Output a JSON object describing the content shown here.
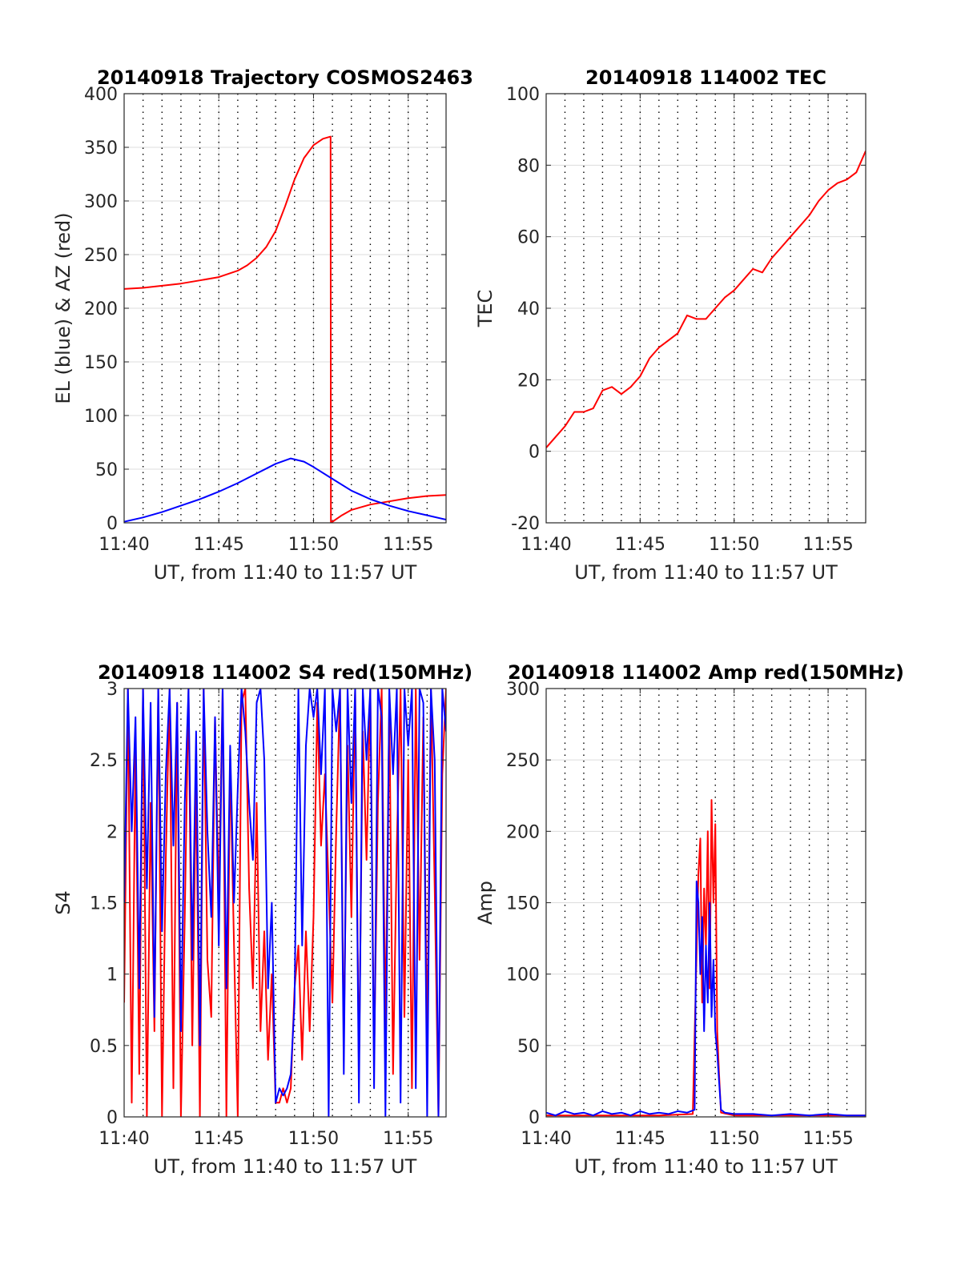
{
  "figure": {
    "colors": {
      "red": "#ff0000",
      "blue": "#0000ff",
      "grid": "#dcdcdc",
      "axis": "#262626"
    }
  },
  "chart_data": [
    {
      "type": "line",
      "title": "20140918 Trajectory COSMOS2463",
      "xlabel": "UT, from 11:40 to 11:57 UT",
      "ylabel": "EL (blue) & AZ (red)",
      "xlim": [
        0,
        17
      ],
      "ylim": [
        0,
        400
      ],
      "xticks": [
        0,
        5,
        10,
        15
      ],
      "xtick_labels": [
        "11:40",
        "11:45",
        "11:50",
        "11:55"
      ],
      "yticks": [
        0,
        50,
        100,
        150,
        200,
        250,
        300,
        350,
        400
      ],
      "ytick_labels": [
        "0",
        "50",
        "100",
        "150",
        "200",
        "250",
        "300",
        "350",
        "400"
      ],
      "grid": true,
      "series": [
        {
          "color": "#ff0000",
          "x": [
            0,
            1,
            2,
            3,
            4,
            5,
            6,
            6.5,
            7,
            7.5,
            8,
            8.5,
            9,
            9.5,
            10,
            10.5,
            10.9,
            10.92,
            11.5,
            12,
            13,
            14,
            15,
            16,
            17
          ],
          "y": [
            218,
            219,
            221,
            223,
            226,
            229,
            235,
            240,
            247,
            257,
            272,
            295,
            320,
            340,
            352,
            358,
            360,
            0,
            7,
            12,
            17,
            20,
            23,
            25,
            26
          ]
        },
        {
          "color": "#0000ff",
          "x": [
            0,
            1,
            2,
            3,
            4,
            5,
            6,
            7,
            8,
            8.8,
            9.5,
            10,
            11,
            12,
            13,
            14,
            15,
            16,
            17
          ],
          "y": [
            1,
            5,
            10,
            16,
            22,
            29,
            37,
            46,
            55,
            60,
            57,
            52,
            41,
            30,
            22,
            16,
            11,
            7,
            3
          ]
        }
      ]
    },
    {
      "type": "line",
      "title": "20140918 114002 TEC",
      "xlabel": "UT, from 11:40 to 11:57 UT",
      "ylabel": "TEC",
      "xlim": [
        0,
        17
      ],
      "ylim": [
        -20,
        100
      ],
      "xticks": [
        0,
        5,
        10,
        15
      ],
      "xtick_labels": [
        "11:40",
        "11:45",
        "11:50",
        "11:55"
      ],
      "yticks": [
        -20,
        0,
        20,
        40,
        60,
        80,
        100
      ],
      "ytick_labels": [
        "-20",
        "0",
        "20",
        "40",
        "60",
        "80",
        "100"
      ],
      "grid": true,
      "series": [
        {
          "color": "#ff0000",
          "x": [
            0,
            0.5,
            1,
            1.5,
            2,
            2.5,
            3,
            3.5,
            4,
            4.5,
            5,
            5.5,
            6,
            6.5,
            7,
            7.5,
            8,
            8.5,
            9,
            9.5,
            10,
            10.5,
            11,
            11.5,
            12,
            12.5,
            13,
            13.5,
            14,
            14.5,
            15,
            15.5,
            16,
            16.5,
            17
          ],
          "y": [
            1,
            4,
            7,
            11,
            11,
            12,
            17,
            18,
            16,
            18,
            21,
            26,
            29,
            31,
            33,
            38,
            37,
            37,
            40,
            43,
            45,
            48,
            51,
            50,
            54,
            57,
            60,
            63,
            66,
            70,
            73,
            75,
            76,
            78,
            84
          ]
        }
      ]
    },
    {
      "type": "line",
      "title": "20140918 114002 S4 red(150MHz)",
      "xlabel": "UT, from 11:40 to 11:57 UT",
      "ylabel": "S4",
      "xlim": [
        0,
        17
      ],
      "ylim": [
        0,
        3
      ],
      "xticks": [
        0,
        5,
        10,
        15
      ],
      "xtick_labels": [
        "11:40",
        "11:45",
        "11:50",
        "11:55"
      ],
      "yticks": [
        0,
        0.5,
        1,
        1.5,
        2,
        2.5,
        3
      ],
      "ytick_labels": [
        "0",
        "0.5",
        "1",
        "1.5",
        "2",
        "2.5",
        "3"
      ],
      "grid": true,
      "series": [
        {
          "color": "#ff0000",
          "x": [
            0,
            0.2,
            0.4,
            0.6,
            0.8,
            1,
            1.2,
            1.4,
            1.6,
            1.8,
            2,
            2.2,
            2.4,
            2.6,
            2.8,
            3,
            3.2,
            3.4,
            3.6,
            3.8,
            4,
            4.2,
            4.4,
            4.6,
            4.8,
            5,
            5.2,
            5.4,
            5.6,
            5.8,
            6,
            6.2,
            6.4,
            6.6,
            6.8,
            7,
            7.2,
            7.4,
            7.6,
            7.8,
            8,
            8.2,
            8.4,
            8.6,
            8.8,
            9,
            9.2,
            9.4,
            9.6,
            9.8,
            10,
            10.2,
            10.4,
            10.6,
            10.8,
            11,
            11.2,
            11.4,
            11.6,
            11.8,
            12,
            12.2,
            12.4,
            12.6,
            12.8,
            13,
            13.2,
            13.4,
            13.6,
            13.8,
            14,
            14.2,
            14.4,
            14.6,
            14.8,
            15,
            15.2,
            15.4,
            15.6,
            15.8,
            16,
            16.2,
            16.4,
            16.6,
            16.8,
            17
          ],
          "y": [
            0.8,
            3,
            0.1,
            2.6,
            0.3,
            3,
            0,
            2.2,
            0.6,
            3,
            0,
            1.8,
            3,
            0.2,
            2.9,
            0,
            1.4,
            3,
            0.5,
            2.4,
            0,
            3,
            1.1,
            0.7,
            2.8,
            1.5,
            3,
            0,
            2.5,
            1.2,
            0,
            2.9,
            3,
            1.6,
            0.9,
            2.2,
            0.6,
            1.3,
            0.4,
            1,
            0.1,
            0.1,
            0.2,
            0.1,
            0.2,
            0.9,
            1.2,
            0.4,
            1.3,
            0.6,
            1.4,
            2.9,
            1.9,
            2.4,
            1.6,
            0.8,
            2,
            3,
            0.5,
            2.6,
            1.4,
            3,
            0.3,
            2.7,
            1.8,
            3,
            0.4,
            2.2,
            3,
            0.6,
            2.9,
            0.3,
            1.9,
            3,
            0.7,
            2.5,
            0.2,
            3,
            1.1,
            2.8,
            0.5,
            3,
            1.6,
            0,
            2.4,
            3
          ]
        },
        {
          "color": "#0000ff",
          "x": [
            0,
            0.2,
            0.4,
            0.6,
            0.8,
            1,
            1.2,
            1.4,
            1.6,
            1.8,
            2,
            2.2,
            2.4,
            2.6,
            2.8,
            3,
            3.2,
            3.4,
            3.6,
            3.8,
            4,
            4.2,
            4.4,
            4.6,
            4.8,
            5,
            5.2,
            5.4,
            5.6,
            5.8,
            6,
            6.2,
            6.4,
            6.6,
            6.8,
            7,
            7.2,
            7.4,
            7.6,
            7.8,
            8,
            8.2,
            8.4,
            8.6,
            8.8,
            9,
            9.2,
            9.4,
            9.6,
            9.8,
            10,
            10.2,
            10.4,
            10.6,
            10.8,
            11,
            11.2,
            11.4,
            11.6,
            11.8,
            12,
            12.2,
            12.4,
            12.6,
            12.8,
            13,
            13.2,
            13.4,
            13.6,
            13.8,
            14,
            14.2,
            14.4,
            14.6,
            14.8,
            15,
            15.2,
            15.4,
            15.6,
            15.8,
            16,
            16.2,
            16.4,
            16.6,
            16.8,
            17
          ],
          "y": [
            1.5,
            3,
            2,
            2.8,
            0.9,
            3,
            1.6,
            2.9,
            0.7,
            3,
            1.3,
            2.4,
            3,
            1.9,
            2.9,
            0.6,
            2.2,
            3,
            1.1,
            2.7,
            0.5,
            3,
            2,
            1.4,
            2.8,
            1.2,
            3,
            0.9,
            2.6,
            1.5,
            2.3,
            3,
            2.7,
            2.2,
            1.8,
            2.9,
            3,
            2.5,
            0.9,
            1.5,
            0.1,
            0.2,
            0.15,
            0.2,
            0.3,
            0.8,
            3,
            1.2,
            2.6,
            3,
            2.8,
            3,
            2.4,
            3,
            0,
            3,
            2.7,
            3,
            0.3,
            3,
            2.2,
            3,
            0.1,
            3,
            2.5,
            3,
            0.2,
            3,
            2.8,
            0,
            3,
            2.4,
            3,
            0.1,
            3,
            2.6,
            3,
            0.2,
            3,
            2.9,
            0,
            3,
            2.5,
            0,
            3,
            2.7
          ]
        }
      ]
    },
    {
      "type": "line",
      "title": "20140918 114002 Amp red(150MHz)",
      "xlabel": "UT, from 11:40 to 11:57 UT",
      "ylabel": "Amp",
      "xlim": [
        0,
        17
      ],
      "ylim": [
        0,
        300
      ],
      "xticks": [
        0,
        5,
        10,
        15
      ],
      "xtick_labels": [
        "11:40",
        "11:45",
        "11:50",
        "11:55"
      ],
      "yticks": [
        0,
        50,
        100,
        150,
        200,
        250,
        300
      ],
      "ytick_labels": [
        "0",
        "50",
        "100",
        "150",
        "200",
        "250",
        "300"
      ],
      "grid": true,
      "series": [
        {
          "color": "#ff0000",
          "x": [
            0,
            2,
            4,
            6,
            7.8,
            8.1,
            8.2,
            8.3,
            8.4,
            8.5,
            8.6,
            8.7,
            8.8,
            8.9,
            9,
            9.1,
            9.2,
            9.3,
            10,
            12,
            14,
            17
          ],
          "y": [
            1,
            1,
            1,
            1,
            2,
            170,
            195,
            80,
            160,
            120,
            200,
            90,
            222,
            150,
            205,
            60,
            30,
            3,
            1,
            1,
            1,
            1
          ]
        },
        {
          "color": "#0000ff",
          "x": [
            0,
            0.5,
            1,
            1.5,
            2,
            2.5,
            3,
            3.5,
            4,
            4.5,
            5,
            5.5,
            6,
            6.5,
            7,
            7.5,
            7.9,
            8,
            8.1,
            8.2,
            8.3,
            8.4,
            8.5,
            8.6,
            8.7,
            8.8,
            8.9,
            9,
            9.1,
            9.2,
            9.3,
            9.5,
            10,
            11,
            12,
            13,
            14,
            15,
            16,
            17
          ],
          "y": [
            3,
            1,
            4,
            2,
            3,
            1,
            4,
            2,
            3,
            1,
            4,
            2,
            3,
            2,
            4,
            3,
            5,
            165,
            150,
            100,
            140,
            60,
            120,
            80,
            150,
            70,
            110,
            60,
            45,
            25,
            5,
            3,
            2,
            2,
            1,
            2,
            1,
            2,
            1,
            1
          ]
        }
      ]
    }
  ]
}
